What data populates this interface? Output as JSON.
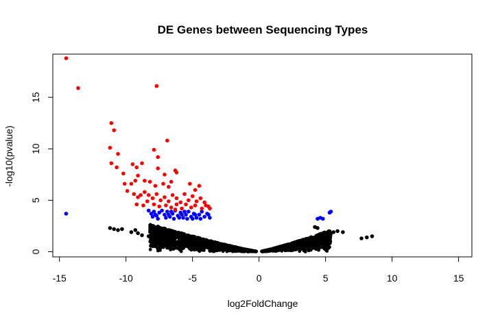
{
  "chart_data": {
    "type": "scatter",
    "title": "DE Genes between Sequencing Types",
    "xlabel": "log2FoldChange",
    "ylabel": "-log10(pvalue)",
    "xlim": [
      -15.5,
      16
    ],
    "ylim": [
      -0.5,
      19.2
    ],
    "x_ticks": [
      -15,
      -10,
      -5,
      0,
      5,
      10,
      15
    ],
    "y_ticks": [
      0,
      5,
      10,
      15
    ],
    "x_tick_labels": [
      "-15",
      "-10",
      "-5",
      "0",
      "5",
      "10",
      "15"
    ],
    "y_tick_labels": [
      "0",
      "5",
      "10",
      "15"
    ],
    "grid": false,
    "colors": {
      "not_significant": "#000000",
      "pvalue_significant": "#0000ff",
      "padj_significant": "#ff0000"
    },
    "series": [
      {
        "color": "#ff0000",
        "points": [
          [
            -14.5,
            18.8
          ],
          [
            -13.6,
            15.9
          ],
          [
            -7.7,
            16.1
          ],
          [
            -11.1,
            12.5
          ],
          [
            -10.9,
            11.8
          ],
          [
            -6.9,
            10.8
          ],
          [
            -11.2,
            10.1
          ],
          [
            -10.6,
            9.5
          ],
          [
            -7.9,
            9.9
          ],
          [
            -7.6,
            9.2
          ],
          [
            -11.1,
            8.6
          ],
          [
            -10.7,
            8.2
          ],
          [
            -10.2,
            7.6
          ],
          [
            -9.5,
            8.5
          ],
          [
            -9.2,
            8.2
          ],
          [
            -8.8,
            8.6
          ],
          [
            -6.3,
            7.9
          ],
          [
            -6.2,
            7.7
          ],
          [
            -10.1,
            6.6
          ],
          [
            -9.1,
            7.4
          ],
          [
            -7.6,
            8.1
          ],
          [
            -7.1,
            7.5
          ],
          [
            -9.3,
            6.9
          ],
          [
            -9.6,
            6.6
          ],
          [
            -8.6,
            6.9
          ],
          [
            -8.2,
            6.8
          ],
          [
            -7.8,
            6.4
          ],
          [
            -7.2,
            6.6
          ],
          [
            -6.8,
            6.3
          ],
          [
            -6.6,
            6.8
          ],
          [
            -5.2,
            6.6
          ],
          [
            -4.5,
            6.4
          ],
          [
            -4.8,
            6.0
          ],
          [
            -9.9,
            5.9
          ],
          [
            -9.4,
            5.6
          ],
          [
            -9.1,
            5.3
          ],
          [
            -8.9,
            5.5
          ],
          [
            -8.6,
            5.8
          ],
          [
            -8.3,
            5.5
          ],
          [
            -8.0,
            5.2
          ],
          [
            -7.7,
            5.6
          ],
          [
            -7.4,
            5.0
          ],
          [
            -7.1,
            5.3
          ],
          [
            -6.8,
            4.9
          ],
          [
            -6.5,
            5.5
          ],
          [
            -6.2,
            5.2
          ],
          [
            -5.9,
            4.8
          ],
          [
            -5.6,
            5.6
          ],
          [
            -5.3,
            5.0
          ],
          [
            -5.0,
            5.4
          ],
          [
            -4.7,
            4.9
          ],
          [
            -4.4,
            5.2
          ],
          [
            -4.1,
            4.8
          ],
          [
            -3.8,
            4.4
          ],
          [
            -9.2,
            4.6
          ],
          [
            -8.7,
            4.5
          ],
          [
            -8.4,
            4.9
          ],
          [
            -7.9,
            4.6
          ],
          [
            -7.5,
            4.4
          ],
          [
            -7.0,
            4.5
          ],
          [
            -6.6,
            4.3
          ],
          [
            -6.2,
            4.6
          ],
          [
            -5.8,
            4.2
          ],
          [
            -5.5,
            4.6
          ],
          [
            -5.1,
            4.3
          ],
          [
            -4.8,
            4.5
          ],
          [
            -4.3,
            4.2
          ],
          [
            -4.0,
            4.5
          ],
          [
            -3.7,
            4.2
          ],
          [
            -6.3,
            4.1
          ]
        ]
      },
      {
        "color": "#0000ff",
        "points": [
          [
            -14.5,
            3.7
          ],
          [
            -8.3,
            4.0
          ],
          [
            -8.1,
            3.7
          ],
          [
            -7.9,
            3.9
          ],
          [
            -7.7,
            3.5
          ],
          [
            -7.5,
            3.8
          ],
          [
            -7.3,
            4.0
          ],
          [
            -7.1,
            3.6
          ],
          [
            -6.9,
            3.9
          ],
          [
            -6.7,
            3.4
          ],
          [
            -6.5,
            3.7
          ],
          [
            -6.3,
            4.0
          ],
          [
            -6.1,
            3.5
          ],
          [
            -5.9,
            3.8
          ],
          [
            -5.7,
            3.3
          ],
          [
            -5.5,
            3.6
          ],
          [
            -5.3,
            3.9
          ],
          [
            -5.1,
            3.4
          ],
          [
            -4.9,
            3.7
          ],
          [
            -4.7,
            3.3
          ],
          [
            -4.5,
            3.6
          ],
          [
            -4.3,
            3.9
          ],
          [
            -4.1,
            3.4
          ],
          [
            -3.9,
            3.7
          ],
          [
            -3.7,
            3.3
          ],
          [
            -7.0,
            3.3
          ],
          [
            -6.0,
            3.3
          ],
          [
            -5.0,
            3.2
          ],
          [
            -8.0,
            3.4
          ],
          [
            -7.6,
            3.2
          ],
          [
            -6.4,
            3.2
          ],
          [
            -5.4,
            3.2
          ],
          [
            -4.4,
            3.2
          ],
          [
            -7.8,
            3.6
          ],
          [
            -6.8,
            3.6
          ],
          [
            -5.8,
            3.6
          ],
          [
            -4.8,
            3.6
          ],
          [
            -3.8,
            3.6
          ],
          [
            -6.6,
            3.9
          ],
          [
            -5.6,
            3.9
          ],
          [
            4.4,
            3.2
          ],
          [
            4.6,
            3.3
          ],
          [
            4.8,
            3.2
          ],
          [
            5.3,
            3.8
          ],
          [
            5.4,
            3.9
          ]
        ]
      },
      {
        "color": "#000000",
        "points": [
          [
            -11.2,
            2.3
          ],
          [
            -10.9,
            2.2
          ],
          [
            -10.6,
            2.1
          ],
          [
            -10.3,
            2.2
          ],
          [
            -9.6,
            1.9
          ],
          [
            -9.3,
            2.1
          ],
          [
            -9.1,
            1.8
          ],
          [
            -8.8,
            1.6
          ],
          [
            -8.3,
            1.5
          ],
          [
            -7.9,
            1.3
          ],
          [
            -7.6,
            1.4
          ],
          [
            -7.1,
            1.3
          ],
          [
            7.7,
            1.3
          ],
          [
            8.1,
            1.4
          ],
          [
            8.5,
            1.5
          ],
          [
            5.6,
            1.9
          ],
          [
            5.9,
            2.0
          ],
          [
            6.3,
            1.9
          ],
          [
            4.2,
            2.4
          ],
          [
            4.4,
            2.3
          ]
        ],
        "density_band": {
          "left": {
            "x_range": [
              -8.2,
              -0.2
            ],
            "y_at_edge": 2.7
          },
          "right": {
            "x_range": [
              0.2,
              5.4
            ],
            "y_at_edge": 2.1
          }
        }
      }
    ]
  }
}
